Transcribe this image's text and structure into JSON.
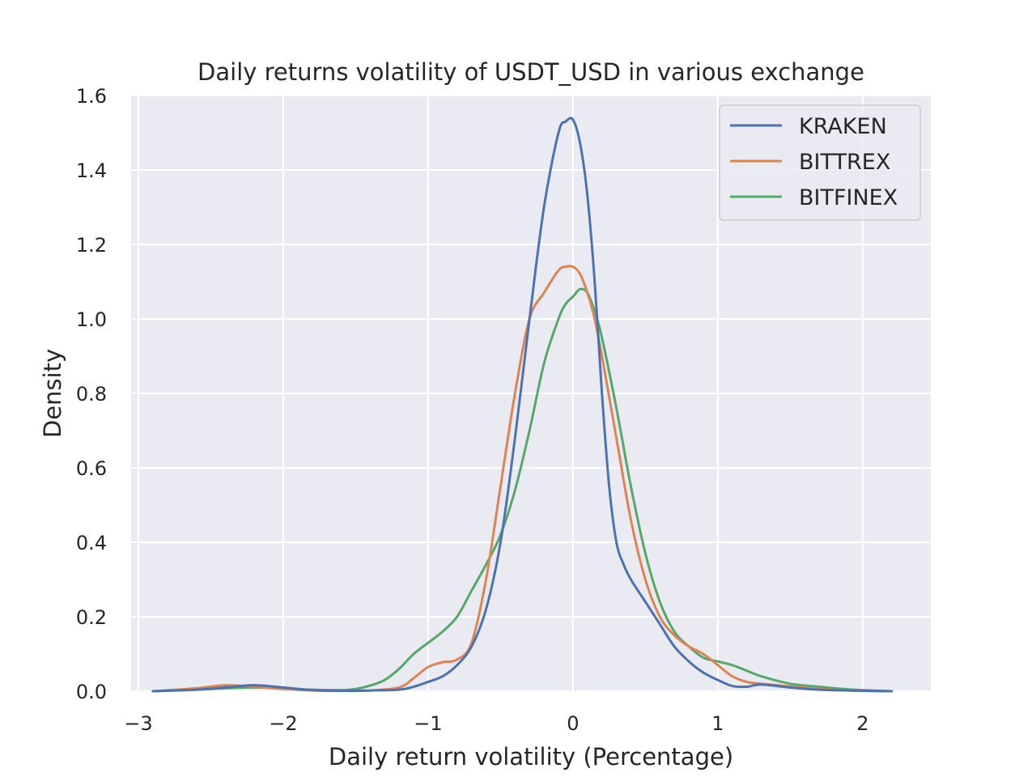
{
  "chart_data": {
    "type": "line",
    "title": "Daily returns volatility of USDT_USD in various exchange",
    "xlabel": "Daily return volatility (Percentage)",
    "ylabel": "Density",
    "xlim": [
      -3.05,
      2.47
    ],
    "ylim": [
      0,
      1.6
    ],
    "x_ticks": [
      -3,
      -2,
      -1,
      0,
      1,
      2
    ],
    "x_tick_labels": [
      "−3",
      "−2",
      "−1",
      "0",
      "1",
      "2"
    ],
    "y_ticks": [
      0.0,
      0.2,
      0.4,
      0.6,
      0.8,
      1.0,
      1.2,
      1.4,
      1.6
    ],
    "y_tick_labels": [
      "0.0",
      "0.2",
      "0.4",
      "0.6",
      "0.8",
      "1.0",
      "1.2",
      "1.4",
      "1.6"
    ],
    "grid": true,
    "legend_position": "top-right",
    "background": "#eaeaf2",
    "series": [
      {
        "name": "KRAKEN",
        "color": "#4c72b0",
        "x": [
          -2.9,
          -2.6,
          -2.4,
          -2.2,
          -2.0,
          -1.8,
          -1.6,
          -1.4,
          -1.2,
          -1.1,
          -1.0,
          -0.9,
          -0.8,
          -0.7,
          -0.6,
          -0.5,
          -0.4,
          -0.3,
          -0.2,
          -0.1,
          -0.05,
          0.0,
          0.05,
          0.1,
          0.15,
          0.2,
          0.25,
          0.3,
          0.35,
          0.4,
          0.5,
          0.6,
          0.7,
          0.8,
          0.9,
          1.0,
          1.1,
          1.2,
          1.3,
          1.5,
          1.7,
          1.9,
          2.2
        ],
        "y": [
          0.0,
          0.004,
          0.01,
          0.016,
          0.01,
          0.003,
          0.001,
          0.002,
          0.004,
          0.012,
          0.025,
          0.04,
          0.07,
          0.12,
          0.22,
          0.4,
          0.68,
          1.0,
          1.3,
          1.5,
          1.53,
          1.535,
          1.47,
          1.33,
          1.1,
          0.8,
          0.55,
          0.4,
          0.34,
          0.3,
          0.24,
          0.18,
          0.12,
          0.08,
          0.05,
          0.03,
          0.014,
          0.012,
          0.018,
          0.01,
          0.004,
          0.002,
          0.0
        ]
      },
      {
        "name": "BITTREX",
        "color": "#dd8452",
        "x": [
          -2.9,
          -2.6,
          -2.4,
          -2.2,
          -2.0,
          -1.8,
          -1.6,
          -1.4,
          -1.2,
          -1.1,
          -1.0,
          -0.9,
          -0.8,
          -0.7,
          -0.6,
          -0.5,
          -0.4,
          -0.3,
          -0.2,
          -0.1,
          -0.05,
          0.0,
          0.05,
          0.1,
          0.15,
          0.2,
          0.3,
          0.4,
          0.5,
          0.6,
          0.7,
          0.8,
          0.9,
          1.0,
          1.1,
          1.2,
          1.3,
          1.5,
          1.7,
          1.9,
          2.2
        ],
        "y": [
          0.0,
          0.008,
          0.016,
          0.012,
          0.006,
          0.002,
          0.001,
          0.002,
          0.01,
          0.035,
          0.065,
          0.078,
          0.085,
          0.13,
          0.3,
          0.55,
          0.8,
          1.0,
          1.07,
          1.13,
          1.14,
          1.14,
          1.12,
          1.07,
          1.0,
          0.9,
          0.68,
          0.46,
          0.3,
          0.2,
          0.15,
          0.12,
          0.1,
          0.07,
          0.04,
          0.025,
          0.02,
          0.013,
          0.006,
          0.002,
          0.0
        ]
      },
      {
        "name": "BITFINEX",
        "color": "#55a868",
        "x": [
          -2.9,
          -2.6,
          -2.4,
          -2.2,
          -2.0,
          -1.8,
          -1.6,
          -1.5,
          -1.4,
          -1.3,
          -1.2,
          -1.1,
          -1.0,
          -0.9,
          -0.8,
          -0.7,
          -0.6,
          -0.5,
          -0.4,
          -0.3,
          -0.2,
          -0.1,
          -0.05,
          0.0,
          0.05,
          0.1,
          0.15,
          0.2,
          0.3,
          0.4,
          0.5,
          0.6,
          0.7,
          0.8,
          0.9,
          1.0,
          1.1,
          1.2,
          1.3,
          1.5,
          1.7,
          1.9,
          2.2
        ],
        "y": [
          0.0,
          0.004,
          0.008,
          0.01,
          0.008,
          0.004,
          0.003,
          0.006,
          0.015,
          0.03,
          0.06,
          0.1,
          0.13,
          0.16,
          0.2,
          0.27,
          0.34,
          0.42,
          0.54,
          0.7,
          0.88,
          1.0,
          1.04,
          1.06,
          1.08,
          1.07,
          1.02,
          0.95,
          0.76,
          0.55,
          0.37,
          0.24,
          0.16,
          0.12,
          0.09,
          0.08,
          0.07,
          0.055,
          0.04,
          0.02,
          0.012,
          0.005,
          0.0
        ]
      }
    ]
  }
}
